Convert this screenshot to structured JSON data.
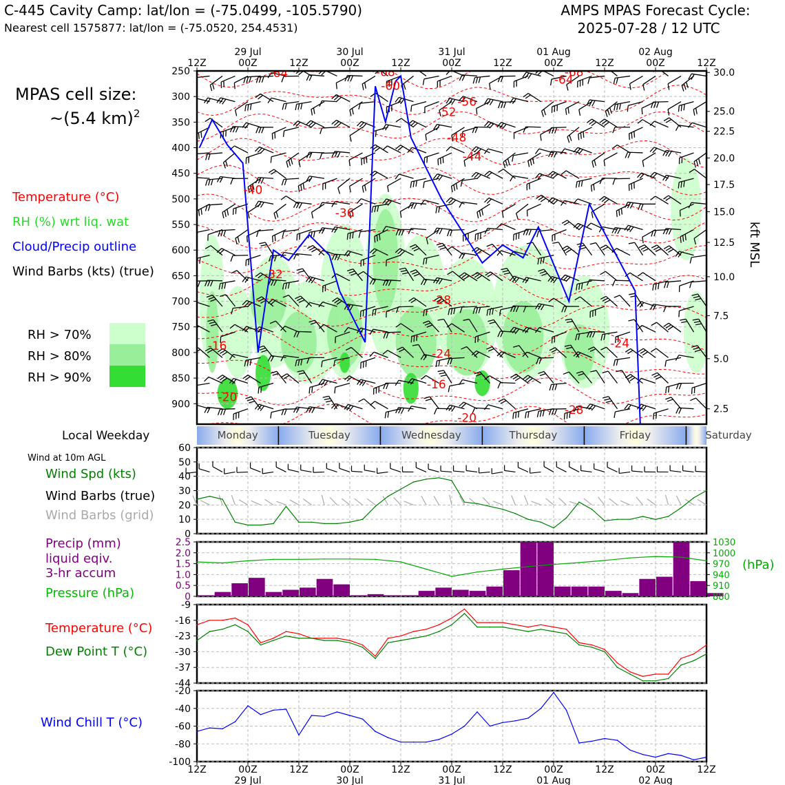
{
  "header": {
    "title_left": "C-445 Cavity Camp: lat/lon = (-75.0499, -105.5790)",
    "subtitle_left": "Nearest cell 1575877: lat/lon = (-75.0520, 254.4531)",
    "title_right_1": "AMPS MPAS Forecast Cycle:",
    "title_right_2": "2025-07-28 / 12 UTC"
  },
  "time_axis": {
    "ticks": [
      "12Z",
      "00Z",
      "12Z",
      "00Z",
      "12Z",
      "00Z",
      "12Z",
      "00Z",
      "12Z",
      "00Z",
      "12Z"
    ],
    "dates": [
      "29 Jul",
      "30 Jul",
      "31 Jul",
      "01 Aug",
      "02 Aug"
    ]
  },
  "labels": {
    "cell_size_1": "MPAS cell size:",
    "cell_size_2": "~(5.4 km)",
    "cell_size_sup": "2",
    "legend_temp": "Temperature (°C)",
    "legend_rh": "RH (%) wrt liq. wat",
    "legend_cloud": "Cloud/Precip outline",
    "legend_barbs": "Wind Barbs (kts) (true)",
    "rh70": "RH > 70%",
    "rh80": "RH > 80%",
    "rh90": "RH > 90%",
    "local_weekday": "Local Weekday",
    "wind10m": "Wind at 10m AGL",
    "wind_spd": "Wind Spd (kts)",
    "wind_barbs_true": "Wind Barbs (true)",
    "wind_barbs_grid": "Wind Barbs (grid)",
    "precip_1": "Precip (mm)",
    "precip_2": "liquid eqiv.",
    "precip_3": "3-hr accum",
    "pressure": "Pressure (hPa)",
    "hpa": "(hPa)",
    "temp2": "Temperature (°C)",
    "dew": "Dew Point T (°C)",
    "windchill": "Wind Chill T (°C)",
    "kft": "kft MSL"
  },
  "colors": {
    "temp": "#ff0000",
    "rh_text": "#22dd22",
    "cloud": "#0000ff",
    "wind_spd": "#008000",
    "precip": "#800080",
    "pressure": "#00aa00",
    "rh70": "#ccffcc",
    "rh80": "#99ee99",
    "rh90": "#33dd33",
    "grid_barb": "#aaaaaa"
  },
  "chart_data": [
    {
      "type": "heatmap",
      "name": "cross-section",
      "ylabel_left": "hPa",
      "ylabel_right": "kft MSL",
      "pressure_ticks": [
        "250",
        "300",
        "350",
        "400",
        "450",
        "500",
        "550",
        "600",
        "650",
        "700",
        "750",
        "800",
        "850",
        "900"
      ],
      "kft_ticks": [
        "30.0",
        "25.0",
        "22.5",
        "20.0",
        "17.5",
        "15.0",
        "12.5",
        "10.0",
        "7.5",
        "5.0",
        "2.5"
      ],
      "temp_contour_labels": [
        {
          "v": "-64",
          "t": 1.6,
          "p": 262
        },
        {
          "v": "-68",
          "t": 3.7,
          "p": 260
        },
        {
          "v": "-60",
          "t": 3.8,
          "p": 287
        },
        {
          "v": "-52",
          "t": 4.9,
          "p": 338
        },
        {
          "v": "-56",
          "t": 5.3,
          "p": 318
        },
        {
          "v": "-48",
          "t": 5.1,
          "p": 388
        },
        {
          "v": "-44",
          "t": 5.4,
          "p": 425
        },
        {
          "v": "-68",
          "t": 7.4,
          "p": 260
        },
        {
          "v": "-64",
          "t": 7.2,
          "p": 275
        },
        {
          "v": "-40",
          "t": 1.1,
          "p": 490
        },
        {
          "v": "-36",
          "t": 2.9,
          "p": 535
        },
        {
          "v": "-32",
          "t": 1.5,
          "p": 655
        },
        {
          "v": "-28",
          "t": 4.8,
          "p": 705
        },
        {
          "v": "-24",
          "t": 4.8,
          "p": 810
        },
        {
          "v": "-24",
          "t": 8.3,
          "p": 790
        },
        {
          "v": "-20",
          "t": 0.6,
          "p": 895
        },
        {
          "v": "-16",
          "t": 0.4,
          "p": 795
        },
        {
          "v": "-20",
          "t": 5.3,
          "p": 935
        },
        {
          "v": "-28",
          "t": 7.4,
          "p": 920
        },
        {
          "v": "-16",
          "t": 4.7,
          "p": 870
        }
      ]
    },
    {
      "type": "line",
      "name": "wind-speed",
      "ylim": [
        0,
        60
      ],
      "yticks": [
        "0",
        "10",
        "20",
        "30",
        "40",
        "50",
        "60"
      ],
      "x": [
        0,
        0.25,
        0.5,
        0.75,
        1,
        1.25,
        1.5,
        1.75,
        2,
        2.25,
        2.5,
        2.75,
        3,
        3.25,
        3.5,
        3.75,
        4,
        4.25,
        4.5,
        4.75,
        5,
        5.25,
        5.5,
        5.75,
        6,
        6.25,
        6.5,
        6.75,
        7,
        7.25,
        7.5,
        7.75,
        8,
        8.25,
        8.5,
        8.75,
        9,
        9.25,
        9.5,
        9.75,
        10
      ],
      "values": [
        24,
        26,
        24,
        8,
        6,
        6,
        7,
        19,
        8,
        8,
        7,
        7,
        8,
        10,
        19,
        26,
        31,
        36,
        38,
        39,
        37,
        22,
        21,
        19,
        17,
        14,
        10,
        8,
        4,
        11,
        22,
        17,
        9,
        10,
        10,
        12,
        10,
        12,
        18,
        25,
        30
      ]
    },
    {
      "type": "bar",
      "name": "precip",
      "ylim": [
        0,
        2.5
      ],
      "yticks": [
        "0",
        "0.5",
        "1.0",
        "1.5",
        "2.0",
        "2.5"
      ],
      "values": [
        0.05,
        0.2,
        0.6,
        0.85,
        0.2,
        0.3,
        0.4,
        0.8,
        0.55,
        0.05,
        0.1,
        0.05,
        0.05,
        0.25,
        0.4,
        0.3,
        0.25,
        0.45,
        1.2,
        2.5,
        2.5,
        0.45,
        0.45,
        0.45,
        0.25,
        0.15,
        0.8,
        0.9,
        2.5,
        0.7,
        0.15
      ]
    },
    {
      "type": "line",
      "name": "pressure",
      "ylim": [
        880,
        1030
      ],
      "yticks": [
        "880",
        "910",
        "940",
        "970",
        "1000",
        "1030"
      ],
      "x": [
        0,
        0.5,
        1,
        1.5,
        2,
        2.5,
        3,
        3.5,
        4,
        4.5,
        5,
        5.5,
        6,
        6.5,
        7,
        7.5,
        8,
        8.5,
        9,
        9.5,
        10
      ],
      "values": [
        975,
        972,
        978,
        982,
        982,
        983,
        983,
        982,
        975,
        955,
        935,
        947,
        955,
        962,
        968,
        973,
        979,
        986,
        990,
        988,
        978
      ]
    },
    {
      "type": "line",
      "name": "temperature-dewpoint",
      "ylim": [
        -44,
        -9
      ],
      "yticks": [
        "-9",
        "-16",
        "-23",
        "-30",
        "-37",
        "-44"
      ],
      "x": [
        0,
        0.25,
        0.5,
        0.75,
        1,
        1.25,
        1.5,
        1.75,
        2,
        2.25,
        2.5,
        2.75,
        3,
        3.25,
        3.5,
        3.75,
        4,
        4.25,
        4.5,
        4.75,
        5,
        5.25,
        5.5,
        5.75,
        6,
        6.25,
        6.5,
        6.75,
        7,
        7.25,
        7.5,
        7.75,
        8,
        8.25,
        8.5,
        8.75,
        9,
        9.25,
        9.5,
        9.75,
        10
      ],
      "series": [
        {
          "name": "Temperature (°C)",
          "values": [
            -18,
            -16,
            -16,
            -15,
            -18,
            -26,
            -24,
            -21,
            -22,
            -24,
            -24,
            -24,
            -25,
            -27,
            -32,
            -24,
            -23,
            -21,
            -20,
            -18,
            -15,
            -11,
            -17,
            -17,
            -17,
            -18,
            -19,
            -18,
            -19,
            -20,
            -26,
            -27,
            -29,
            -35,
            -39,
            -41,
            -40,
            -40,
            -33,
            -31,
            -27
          ]
        },
        {
          "name": "Dew Point T (°C)",
          "values": [
            -25,
            -21,
            -20,
            -18,
            -21,
            -27,
            -25,
            -23,
            -24,
            -24,
            -25,
            -25,
            -26,
            -28,
            -33,
            -26,
            -25,
            -24,
            -23,
            -21,
            -18,
            -13,
            -19,
            -19,
            -19,
            -20,
            -21,
            -20,
            -21,
            -22,
            -27,
            -28,
            -30,
            -37,
            -40,
            -43,
            -43,
            -42,
            -36,
            -34,
            -31
          ]
        }
      ]
    },
    {
      "type": "line",
      "name": "wind-chill",
      "ylim": [
        -100,
        -20
      ],
      "yticks": [
        "-20",
        "-40",
        "-60",
        "-80",
        "-100"
      ],
      "x": [
        0,
        0.25,
        0.5,
        0.75,
        1,
        1.25,
        1.5,
        1.75,
        2,
        2.25,
        2.5,
        2.75,
        3,
        3.25,
        3.5,
        3.75,
        4,
        4.25,
        4.5,
        4.75,
        5,
        5.25,
        5.5,
        5.75,
        6,
        6.25,
        6.5,
        6.75,
        7,
        7.25,
        7.5,
        7.75,
        8,
        8.25,
        8.5,
        8.75,
        9,
        9.25,
        9.5,
        9.75,
        10
      ],
      "values": [
        -66,
        -62,
        -63,
        -55,
        -37,
        -47,
        -42,
        -41,
        -70,
        -48,
        -49,
        -44,
        -48,
        -52,
        -66,
        -73,
        -78,
        -78,
        -78,
        -75,
        -69,
        -60,
        -44,
        -60,
        -56,
        -54,
        -51,
        -40,
        -22,
        -42,
        -79,
        -77,
        -74,
        -76,
        -87,
        -92,
        -95,
        -91,
        -93,
        -98,
        -95
      ]
    }
  ],
  "weekday_bar": {
    "days": [
      "Monday",
      "Tuesday",
      "Wednesday",
      "Thursday",
      "Friday",
      "Saturday"
    ]
  }
}
